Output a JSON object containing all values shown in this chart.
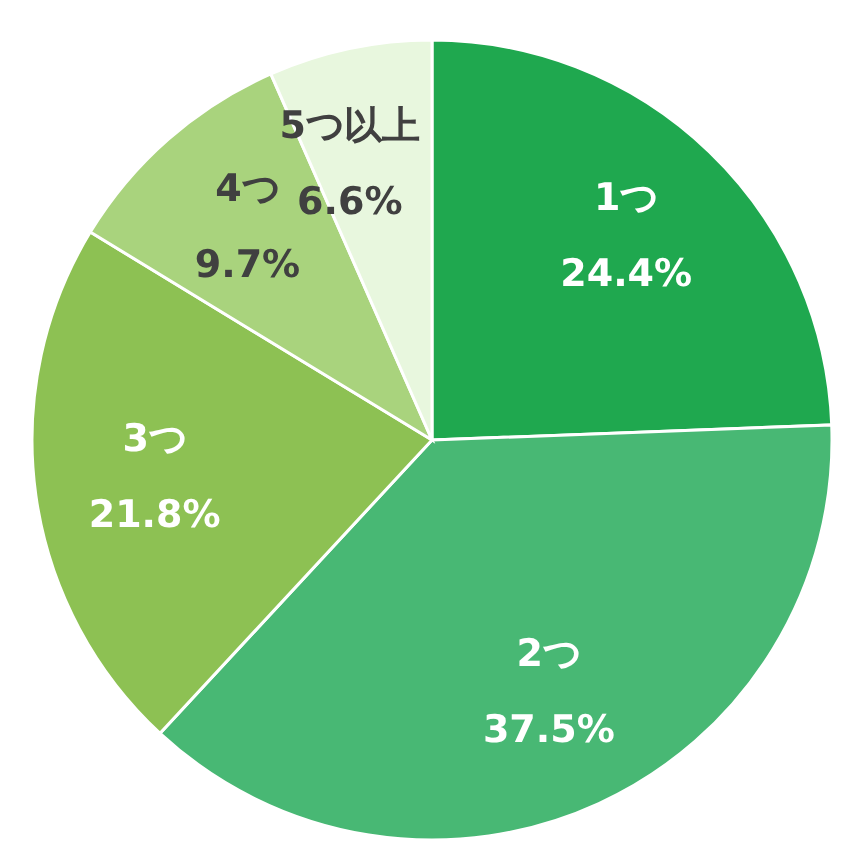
{
  "chart_data": {
    "type": "pie",
    "categories": [
      "1つ",
      "2つ",
      "3つ",
      "4つ",
      "5つ以上"
    ],
    "values": [
      24.4,
      37.5,
      21.8,
      9.7,
      6.6
    ],
    "value_labels": [
      "24.4%",
      "37.5%",
      "21.8%",
      "9.7%",
      "6.6%"
    ],
    "colors": [
      "#1fa84f",
      "#48b874",
      "#8dc153",
      "#a9d37d",
      "#e8f7de"
    ]
  }
}
